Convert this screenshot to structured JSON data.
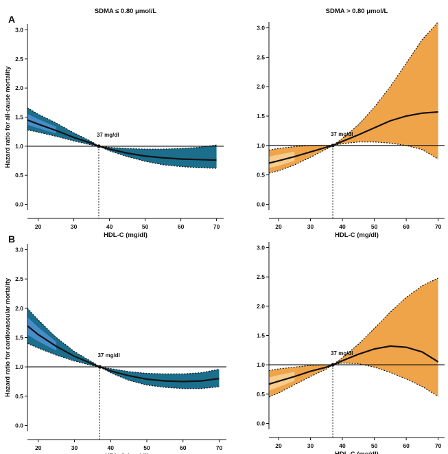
{
  "chart_data": [
    {
      "panel": "A",
      "column_title": "SDMA ≤ 0.80 μmol/L",
      "type": "line",
      "xlabel": "HDL-C (mg/dl)",
      "ylabel": "Hazard ratio for all-cause mortality",
      "xlim": [
        17,
        72
      ],
      "ylim": [
        -0.1,
        3.1
      ],
      "xticks": [
        "20",
        "30",
        "40",
        "50",
        "60",
        "70"
      ],
      "yticks": [
        "0.0",
        "0.5",
        "1.0",
        "1.5",
        "2.0",
        "2.5",
        "3.0"
      ],
      "reference_line": 1.0,
      "annotation": "37 mg/dl",
      "annotation_x": 37,
      "band_color": "#1b6e8c",
      "band_highlight": "#4f93d3",
      "series": [
        {
          "role": "estimate",
          "x": [
            17,
            20,
            25,
            30,
            35,
            37,
            40,
            45,
            50,
            55,
            60,
            65,
            70
          ],
          "values": [
            1.45,
            1.38,
            1.27,
            1.15,
            1.05,
            1.0,
            0.95,
            0.88,
            0.83,
            0.8,
            0.78,
            0.77,
            0.76
          ]
        },
        {
          "role": "lower_ci",
          "x": [
            17,
            20,
            25,
            30,
            35,
            37,
            40,
            45,
            50,
            55,
            60,
            65,
            70
          ],
          "values": [
            1.28,
            1.24,
            1.17,
            1.09,
            1.02,
            1.0,
            0.92,
            0.82,
            0.74,
            0.68,
            0.65,
            0.63,
            0.62
          ]
        },
        {
          "role": "upper_ci",
          "x": [
            17,
            20,
            25,
            30,
            35,
            37,
            40,
            45,
            50,
            55,
            60,
            65,
            70
          ],
          "values": [
            1.66,
            1.55,
            1.4,
            1.23,
            1.08,
            1.0,
            0.98,
            0.96,
            0.95,
            0.95,
            0.96,
            0.98,
            1.02
          ]
        }
      ]
    },
    {
      "panel": "A",
      "column_title": "SDMA > 0.80 μmol/L",
      "type": "line",
      "xlabel": "HDL-C (mg/dl)",
      "ylabel": "",
      "xlim": [
        17,
        72
      ],
      "ylim": [
        -0.1,
        3.1
      ],
      "xticks": [
        "20",
        "30",
        "40",
        "50",
        "60",
        "70"
      ],
      "yticks": [
        "0.0",
        "0.5",
        "1.0",
        "1.5",
        "2.0",
        "2.5",
        "3.0"
      ],
      "reference_line": 1.0,
      "annotation": "37 mg/dl",
      "annotation_x": 37,
      "band_color": "#f0a44a",
      "band_highlight": "#f8d499",
      "series": [
        {
          "role": "estimate",
          "x": [
            17,
            20,
            25,
            30,
            35,
            37,
            40,
            45,
            50,
            55,
            60,
            65,
            70
          ],
          "values": [
            0.7,
            0.74,
            0.81,
            0.89,
            0.97,
            1.0,
            1.07,
            1.18,
            1.3,
            1.42,
            1.5,
            1.55,
            1.57
          ]
        },
        {
          "role": "lower_ci",
          "x": [
            17,
            20,
            25,
            30,
            35,
            37,
            40,
            45,
            50,
            55,
            60,
            65,
            70
          ],
          "values": [
            0.53,
            0.57,
            0.67,
            0.8,
            0.94,
            1.0,
            1.03,
            1.06,
            1.06,
            1.04,
            1.0,
            0.93,
            0.77
          ]
        },
        {
          "role": "upper_ci",
          "x": [
            17,
            20,
            25,
            30,
            35,
            37,
            40,
            45,
            50,
            55,
            60,
            65,
            70
          ],
          "values": [
            0.92,
            0.95,
            0.98,
            1.0,
            1.0,
            1.0,
            1.12,
            1.35,
            1.65,
            2.0,
            2.4,
            2.8,
            3.1
          ]
        }
      ]
    },
    {
      "panel": "B",
      "column_title": "",
      "type": "line",
      "xlabel": "HDL-C (mg/dl)",
      "ylabel": "Hazard ratio for cardiovascular mortality",
      "xlim": [
        17,
        72
      ],
      "ylim": [
        -0.1,
        3.1
      ],
      "xticks": [
        "20",
        "30",
        "40",
        "50",
        "60",
        "70"
      ],
      "yticks": [
        "0.0",
        "0.5",
        "1.0",
        "1.5",
        "2.0",
        "2.5",
        "3.0"
      ],
      "reference_line": 1.0,
      "annotation": "37 mg/dl",
      "annotation_x": 37,
      "band_color": "#1b6e8c",
      "band_highlight": "#4f93d3",
      "series": [
        {
          "role": "estimate",
          "x": [
            17,
            20,
            25,
            30,
            35,
            37,
            40,
            45,
            50,
            55,
            60,
            65,
            70
          ],
          "values": [
            1.7,
            1.55,
            1.35,
            1.18,
            1.05,
            1.0,
            0.93,
            0.85,
            0.79,
            0.76,
            0.75,
            0.76,
            0.8
          ]
        },
        {
          "role": "lower_ci",
          "x": [
            17,
            20,
            25,
            30,
            35,
            37,
            40,
            45,
            50,
            55,
            60,
            65,
            70
          ],
          "values": [
            1.4,
            1.32,
            1.2,
            1.1,
            1.02,
            1.0,
            0.9,
            0.77,
            0.69,
            0.65,
            0.63,
            0.63,
            0.66
          ]
        },
        {
          "role": "upper_ci",
          "x": [
            17,
            20,
            25,
            30,
            35,
            37,
            40,
            45,
            50,
            55,
            60,
            65,
            70
          ],
          "values": [
            2.0,
            1.8,
            1.5,
            1.26,
            1.08,
            1.0,
            0.97,
            0.92,
            0.89,
            0.88,
            0.88,
            0.9,
            0.96
          ]
        }
      ]
    },
    {
      "panel": "B",
      "column_title": "",
      "type": "line",
      "xlabel": "HDL-C (mg/dl)",
      "ylabel": "",
      "xlim": [
        17,
        72
      ],
      "ylim": [
        -0.1,
        3.1
      ],
      "xticks": [
        "20",
        "30",
        "40",
        "50",
        "60",
        "70"
      ],
      "yticks": [
        "0.0",
        "0.5",
        "1.0",
        "1.5",
        "2.0",
        "2.5",
        "3.0"
      ],
      "reference_line": 1.0,
      "annotation": "37 mg/dl",
      "annotation_x": 37,
      "band_color": "#f0a44a",
      "band_highlight": "#f8d499",
      "series": [
        {
          "role": "estimate",
          "x": [
            17,
            20,
            25,
            30,
            35,
            37,
            40,
            45,
            50,
            55,
            60,
            65,
            70
          ],
          "values": [
            0.67,
            0.72,
            0.8,
            0.89,
            0.96,
            1.0,
            1.07,
            1.18,
            1.27,
            1.32,
            1.3,
            1.22,
            1.05
          ]
        },
        {
          "role": "lower_ci",
          "x": [
            17,
            20,
            25,
            30,
            35,
            37,
            40,
            45,
            50,
            55,
            60,
            65,
            70
          ],
          "values": [
            0.45,
            0.52,
            0.66,
            0.8,
            0.93,
            1.0,
            1.03,
            1.02,
            0.96,
            0.87,
            0.76,
            0.63,
            0.46
          ]
        },
        {
          "role": "upper_ci",
          "x": [
            17,
            20,
            25,
            30,
            35,
            37,
            40,
            45,
            50,
            55,
            60,
            65,
            70
          ],
          "values": [
            0.9,
            0.93,
            0.96,
            0.99,
            1.0,
            1.0,
            1.12,
            1.35,
            1.62,
            1.9,
            2.15,
            2.35,
            2.48
          ]
        }
      ]
    }
  ]
}
